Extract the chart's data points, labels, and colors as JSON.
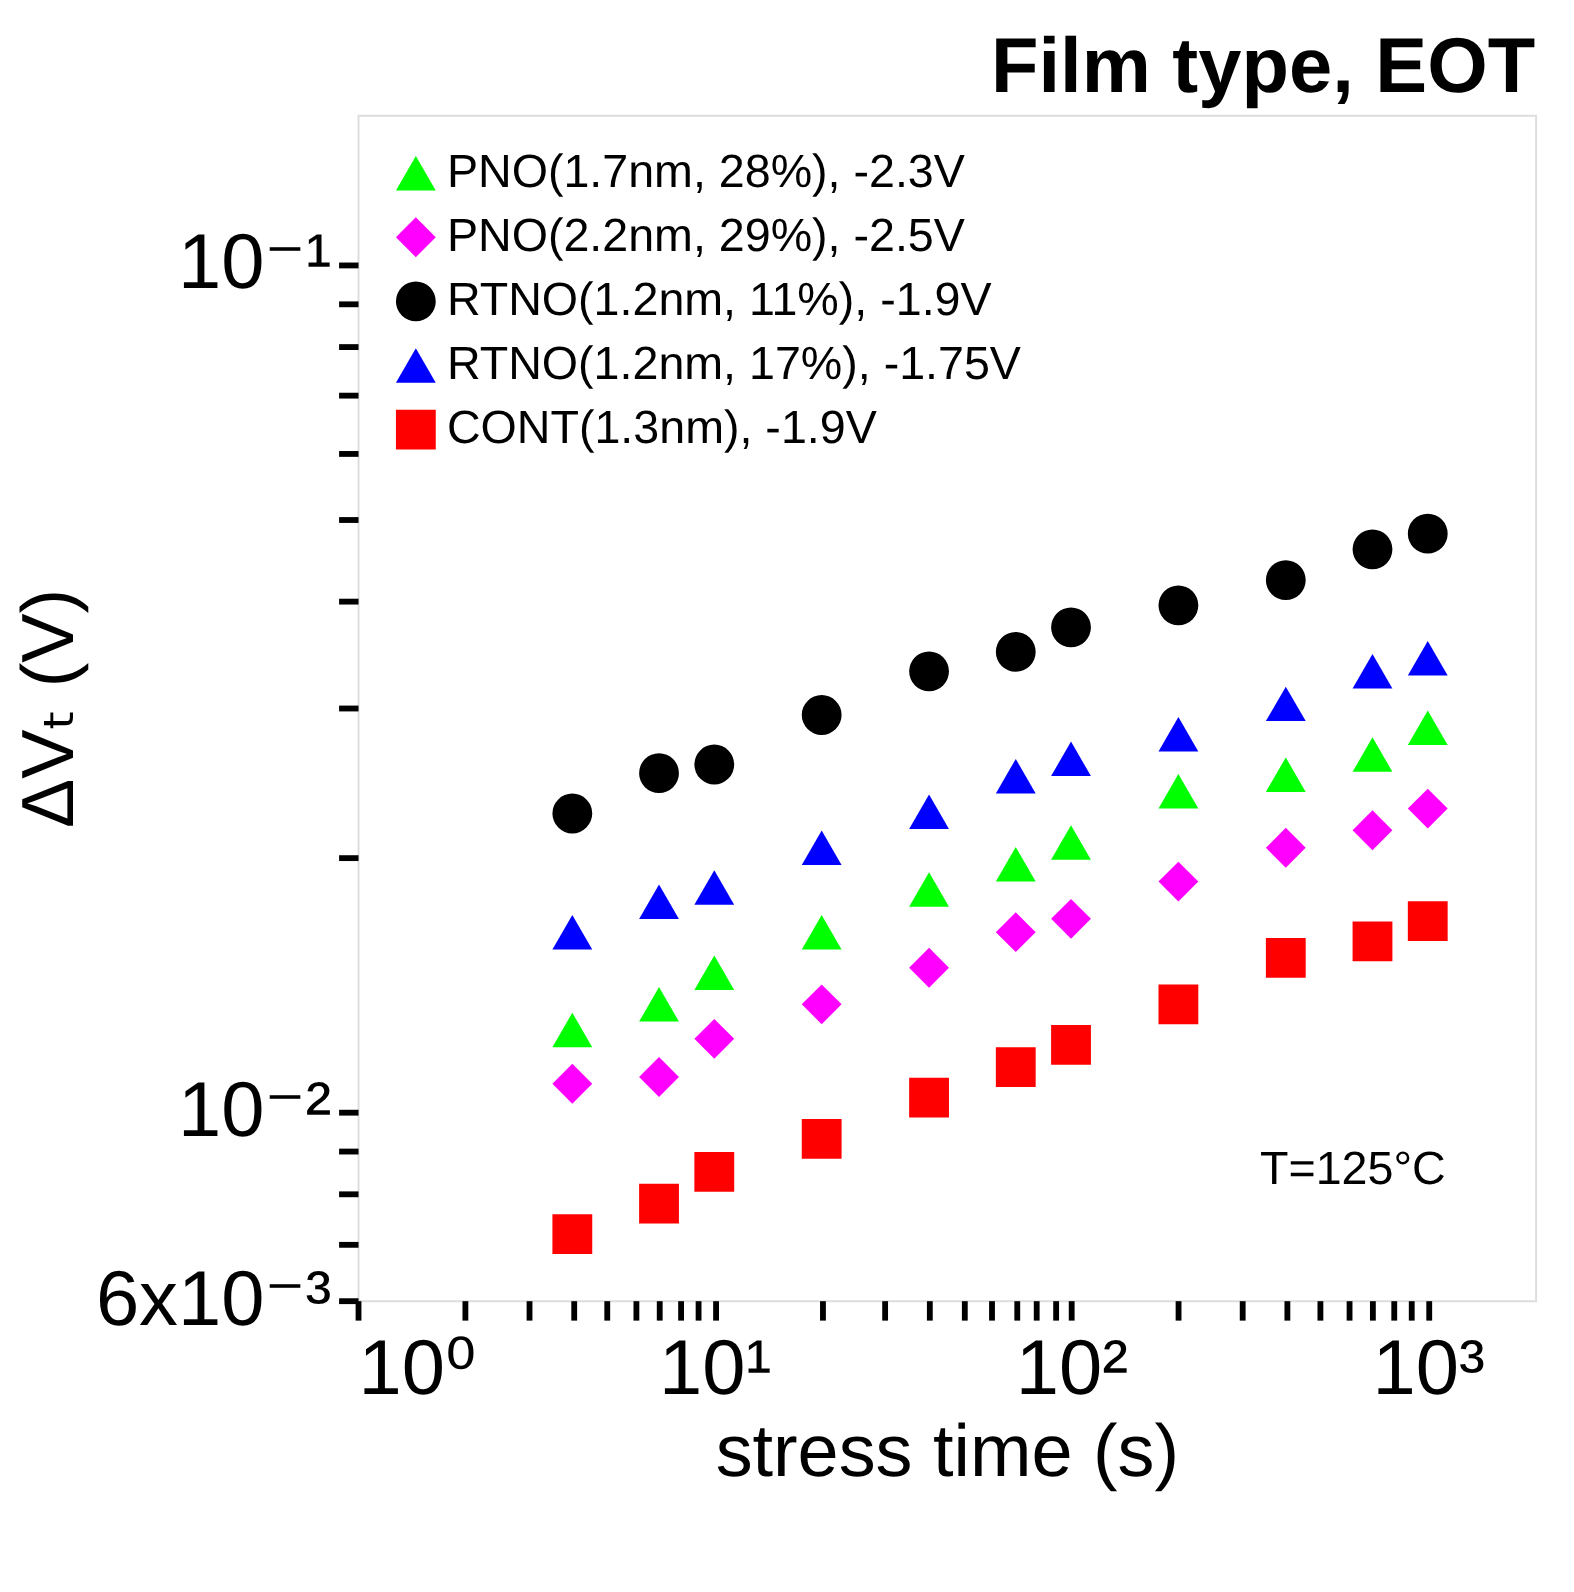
{
  "chart_data": {
    "type": "scatter",
    "title": "Film type, EOT",
    "xlabel": "stress time (s)",
    "ylabel": "ΔVₜ (V)",
    "log": "xy",
    "grid": false,
    "legend": "top left",
    "xlim": [
      1,
      2000
    ],
    "ylim": [
      0.006,
      0.15
    ],
    "xticks": [
      {
        "value": 1,
        "label": "10⁰"
      },
      {
        "value": 2,
        "label": null
      },
      {
        "value": 3,
        "label": null
      },
      {
        "value": 4,
        "label": null
      },
      {
        "value": 5,
        "label": null
      },
      {
        "value": 6,
        "label": null
      },
      {
        "value": 7,
        "label": null
      },
      {
        "value": 8,
        "label": null
      },
      {
        "value": 9,
        "label": null
      },
      {
        "value": 10,
        "label": "10¹"
      },
      {
        "value": 20,
        "label": null
      },
      {
        "value": 30,
        "label": null
      },
      {
        "value": 40,
        "label": null
      },
      {
        "value": 50,
        "label": null
      },
      {
        "value": 60,
        "label": null
      },
      {
        "value": 70,
        "label": null
      },
      {
        "value": 80,
        "label": null
      },
      {
        "value": 90,
        "label": null
      },
      {
        "value": 100,
        "label": "10²"
      },
      {
        "value": 200,
        "label": null
      },
      {
        "value": 300,
        "label": null
      },
      {
        "value": 400,
        "label": null
      },
      {
        "value": 500,
        "label": null
      },
      {
        "value": 600,
        "label": null
      },
      {
        "value": 700,
        "label": null
      },
      {
        "value": 800,
        "label": null
      },
      {
        "value": 900,
        "label": null
      },
      {
        "value": 1000,
        "label": "10³"
      }
    ],
    "yticks": [
      {
        "value": 0.006,
        "label": "6x10⁻³"
      },
      {
        "value": 0.007,
        "label": null
      },
      {
        "value": 0.008,
        "label": null
      },
      {
        "value": 0.009,
        "label": null
      },
      {
        "value": 0.01,
        "label": "10⁻²"
      },
      {
        "value": 0.02,
        "label": null
      },
      {
        "value": 0.03,
        "label": null
      },
      {
        "value": 0.04,
        "label": null
      },
      {
        "value": 0.05,
        "label": null
      },
      {
        "value": 0.06,
        "label": null
      },
      {
        "value": 0.07,
        "label": null
      },
      {
        "value": 0.08,
        "label": null
      },
      {
        "value": 0.09,
        "label": null
      },
      {
        "value": 0.1,
        "label": "10⁻¹"
      }
    ],
    "x": [
      4,
      7,
      10,
      20,
      40,
      70,
      100,
      200,
      400,
      700,
      1000
    ],
    "series": [
      {
        "name": "PNO(1.7nm, 28%), -2.3V",
        "color": "#00ff00",
        "marker": "triangle",
        "values": [
          0.0125,
          0.0134,
          0.0146,
          0.0163,
          0.0183,
          0.0196,
          0.0208,
          0.0239,
          0.025,
          0.0264,
          0.0284
        ]
      },
      {
        "name": "PNO(2.2nm, 29%), -2.5V",
        "color": "#ff00ff",
        "marker": "diamond",
        "values": [
          0.0108,
          0.011,
          0.0122,
          0.0134,
          0.0148,
          0.0163,
          0.0169,
          0.0187,
          0.0205,
          0.0215,
          0.0228
        ]
      },
      {
        "name": "RTNO(1.2nm, 11%), -1.9V",
        "color": "#000000",
        "marker": "circle",
        "values": [
          0.0225,
          0.0251,
          0.0257,
          0.0294,
          0.0331,
          0.0349,
          0.0373,
          0.0396,
          0.0424,
          0.0461,
          0.0481
        ]
      },
      {
        "name": "RTNO(1.2nm, 17%), -1.75V",
        "color": "#0000ff",
        "marker": "triangle",
        "values": [
          0.0163,
          0.0177,
          0.0184,
          0.0205,
          0.0226,
          0.0249,
          0.0261,
          0.0279,
          0.0303,
          0.0331,
          0.0343
        ]
      },
      {
        "name": "CONT(1.3nm), -1.9V",
        "color": "#ff0000",
        "marker": "square",
        "values": [
          0.00718,
          0.0078,
          0.0085,
          0.0093,
          0.0104,
          0.0113,
          0.012,
          0.0134,
          0.0152,
          0.0159,
          0.0168
        ]
      }
    ],
    "annotations": [
      "T=125°C"
    ]
  }
}
